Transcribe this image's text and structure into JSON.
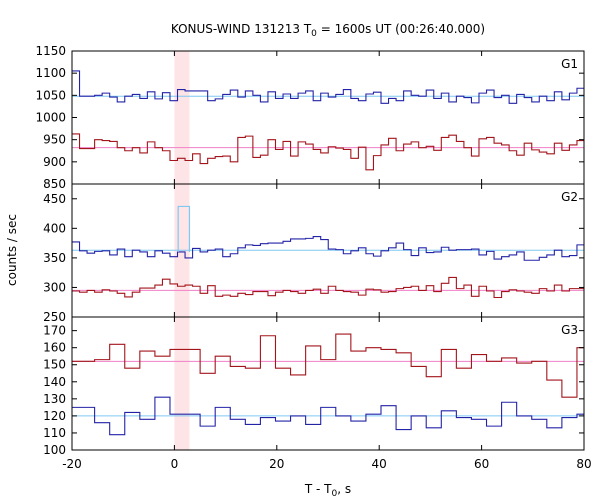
{
  "chart_data": {
    "type": "line",
    "title_prefix": "KONUS-WIND 131213 T",
    "title_sub": "0",
    "title_suffix": " = 1600s UT (00:26:40.000)",
    "xlabel_prefix": "T - T",
    "xlabel_sub": "0",
    "xlabel_suffix": ", s",
    "ylabel": "counts / sec",
    "xlim": [
      -20,
      80
    ],
    "x_ticks": [
      "-20",
      "0",
      "20",
      "40",
      "60",
      "80"
    ],
    "x_tick_values": [
      -20,
      0,
      20,
      40,
      60,
      80
    ],
    "highlight_band": [
      0,
      2.944
    ],
    "colors": {
      "high_channel": "#2323a8",
      "low_channel": "#a3151b",
      "high_mean": "#7fc8f0",
      "low_mean": "#f080c8",
      "flare": "#7fc8f0",
      "band": "#fde4e6"
    },
    "panels": [
      {
        "label": "G1",
        "ylim": [
          850,
          1150
        ],
        "y_ticks": [
          850,
          900,
          950,
          1000,
          1050,
          1100,
          1150
        ],
        "y_tick_labels": [
          "850",
          "900",
          "950",
          "1000",
          "1050",
          "1100",
          "1150"
        ],
        "y_tick_shown": [
          true,
          true,
          true,
          true,
          true,
          true,
          true
        ],
        "series": [
          {
            "role": "high",
            "mean": 1048,
            "values": [
              1105,
              1048,
              1048,
              1050,
              1055,
              1046,
              1035,
              1048,
              1052,
              1043,
              1058,
              1042,
              1056,
              1038,
              1063,
              1060,
              1060,
              1060,
              1038,
              1042,
              1052,
              1062,
              1046,
              1060,
              1050,
              1035,
              1058,
              1043,
              1053,
              1043,
              1055,
              1060,
              1038,
              1055,
              1046,
              1052,
              1063,
              1043,
              1038,
              1053,
              1057,
              1032,
              1043,
              1038,
              1060,
              1050,
              1048,
              1062,
              1043,
              1055,
              1035,
              1048,
              1045,
              1033,
              1055,
              1062,
              1045,
              1050,
              1032,
              1052,
              1045,
              1035,
              1048,
              1038,
              1058,
              1040,
              1055,
              1066
            ]
          },
          {
            "role": "low",
            "mean": 932,
            "values": [
              963,
              930,
              930,
              950,
              948,
              946,
              932,
              925,
              932,
              920,
              945,
              932,
              925,
              903,
              908,
              903,
              918,
              896,
              908,
              912,
              913,
              900,
              955,
              958,
              910,
              915,
              950,
              928,
              946,
              913,
              945,
              940,
              928,
              920,
              934,
              931,
              928,
              908,
              933,
              882,
              914,
              938,
              953,
              925,
              940,
              945,
              932,
              935,
              926,
              955,
              960,
              946,
              932,
              913,
              952,
              955,
              942,
              938,
              925,
              915,
              942,
              927,
              922,
              918,
              942,
              926,
              938,
              948
            ]
          }
        ]
      },
      {
        "label": "G2",
        "ylim": [
          250,
          475
        ],
        "y_ticks": [
          250,
          300,
          350,
          400,
          450
        ],
        "y_tick_labels": [
          "250",
          "300",
          "350",
          "400",
          "450"
        ],
        "y_tick_shown": [
          true,
          true,
          true,
          true,
          true
        ],
        "series": [
          {
            "role": "high",
            "mean": 363,
            "values": [
              377,
              362,
              358,
              361,
              362,
              355,
              365,
              352,
              363,
              360,
              352,
              362,
              358,
              352,
              360,
              350,
              366,
              360,
              363,
              365,
              352,
              357,
              367,
              372,
              371,
              374,
              375,
              375,
              378,
              382,
              382,
              383,
              386,
              381,
              365,
              364,
              357,
              362,
              367,
              357,
              353,
              362,
              367,
              375,
              364,
              354,
              367,
              359,
              360,
              368,
              363,
              364,
              364,
              365,
              355,
              361,
              348,
              352,
              355,
              360,
              346,
              346,
              351,
              355,
              363,
              352,
              354,
              372
            ]
          },
          {
            "role": "low",
            "mean": 295,
            "values": [
              294,
              292,
              295,
              292,
              296,
              294,
              290,
              284,
              292,
              299,
              299,
              304,
              314,
              306,
              302,
              304,
              302,
              290,
              303,
              285,
              287,
              285,
              290,
              288,
              293,
              293,
              286,
              292,
              295,
              293,
              290,
              295,
              297,
              290,
              302,
              295,
              293,
              292,
              287,
              297,
              296,
              292,
              293,
              298,
              300,
              302,
              295,
              303,
              293,
              307,
              317,
              298,
              304,
              285,
              302,
              294,
              283,
              293,
              296,
              294,
              292,
              290,
              298,
              294,
              304,
              294,
              298,
              298
            ]
          }
        ],
        "flare_bin": {
          "x": [
            0.736,
            2.944
          ],
          "value": 437
        }
      },
      {
        "label": "G3",
        "ylim": [
          100,
          178
        ],
        "y_ticks": [
          100,
          110,
          120,
          130,
          140,
          150,
          160,
          170
        ],
        "y_tick_labels": [
          "100",
          "110",
          "120",
          "130",
          "140",
          "150",
          "160",
          "170"
        ],
        "y_tick_shown": [
          true,
          true,
          true,
          true,
          true,
          true,
          true,
          true
        ],
        "series": [
          {
            "role": "high",
            "mean": 120,
            "values": [
              125,
              125,
              125,
              116,
              116,
              109,
              109,
              122,
              122,
              118,
              118,
              131,
              131,
              121,
              121,
              121,
              121,
              114,
              114,
              125,
              125,
              118,
              118,
              115,
              115,
              119,
              119,
              117,
              117,
              120,
              120,
              115,
              115,
              125,
              125,
              120,
              120,
              117,
              117,
              121,
              121,
              126,
              126,
              112,
              112,
              120,
              120,
              113,
              113,
              123,
              123,
              119,
              119,
              118,
              118,
              114,
              114,
              128,
              128,
              120,
              120,
              118,
              118,
              113,
              113,
              119,
              119,
              121
            ]
          },
          {
            "role": "low",
            "mean": 152,
            "values": [
              152,
              152,
              152,
              153,
              153,
              162,
              162,
              148,
              148,
              158,
              158,
              155,
              155,
              159,
              159,
              159,
              159,
              145,
              145,
              155,
              155,
              149,
              149,
              148,
              148,
              167,
              167,
              148,
              148,
              144,
              144,
              161,
              161,
              153,
              153,
              168,
              168,
              158,
              158,
              160,
              160,
              159,
              159,
              157,
              157,
              149,
              149,
              143,
              143,
              159,
              159,
              148,
              148,
              156,
              156,
              152,
              152,
              154,
              154,
              151,
              151,
              152,
              152,
              141,
              141,
              131,
              131,
              160
            ]
          }
        ]
      }
    ]
  }
}
